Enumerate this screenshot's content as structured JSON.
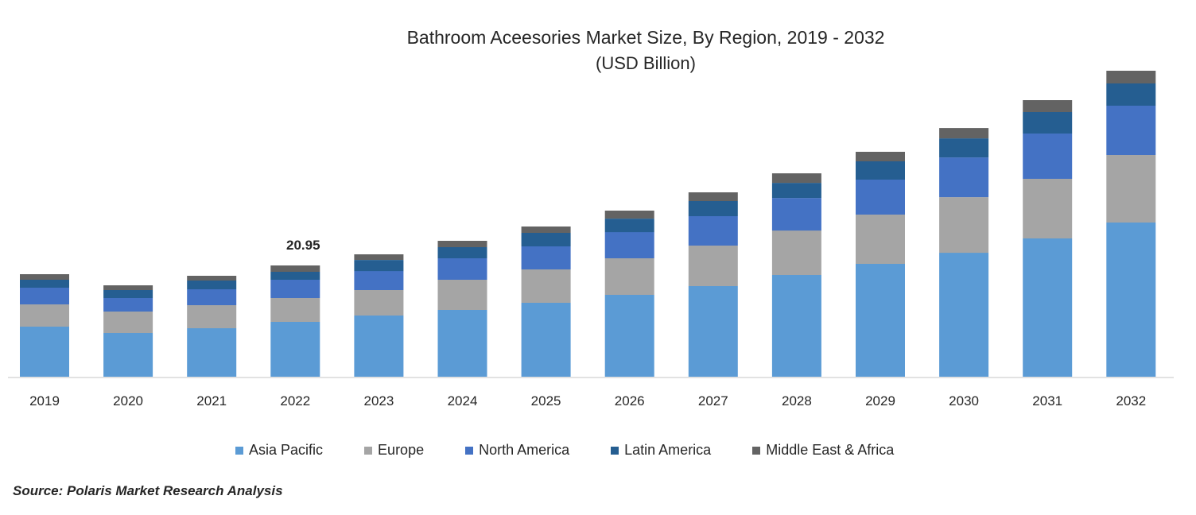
{
  "chart_data": {
    "type": "bar",
    "stacked": true,
    "title": "Bathroom Aceesories Market Size, By Region, 2019 - 2032",
    "subtitle": "(USD Billion)",
    "xlabel": "",
    "ylabel": "",
    "categories": [
      "2019",
      "2020",
      "2021",
      "2022",
      "2023",
      "2024",
      "2025",
      "2026",
      "2027",
      "2028",
      "2029",
      "2030",
      "2031",
      "2032"
    ],
    "series": [
      {
        "name": "Asia Pacific",
        "color": "#5b9bd5",
        "values": [
          9.43,
          8.23,
          9.13,
          10.32,
          11.52,
          12.57,
          13.92,
          15.41,
          17.06,
          19.15,
          21.25,
          23.34,
          26.04,
          29.03
        ]
      },
      {
        "name": "Europe",
        "color": "#a5a5a5",
        "values": [
          4.19,
          4.04,
          4.34,
          4.49,
          4.79,
          5.69,
          6.28,
          6.88,
          7.63,
          8.38,
          9.28,
          10.47,
          11.22,
          12.72
        ]
      },
      {
        "name": "North America",
        "color": "#4472c4",
        "values": [
          3.14,
          2.54,
          2.99,
          3.44,
          3.59,
          4.04,
          4.34,
          4.94,
          5.54,
          6.13,
          6.58,
          7.48,
          8.53,
          9.28
        ]
      },
      {
        "name": "Latin America",
        "color": "#255e91",
        "values": [
          1.5,
          1.5,
          1.65,
          1.5,
          2.09,
          2.09,
          2.54,
          2.54,
          2.84,
          2.84,
          3.44,
          3.59,
          4.04,
          4.19
        ]
      },
      {
        "name": "Middle East & Africa",
        "color": "#636363",
        "values": [
          1.05,
          0.9,
          0.9,
          1.2,
          1.05,
          1.2,
          1.2,
          1.5,
          1.65,
          1.8,
          1.8,
          1.95,
          2.24,
          2.39
        ]
      }
    ],
    "annotations": [
      {
        "category": "2022",
        "text": "20.95"
      }
    ],
    "ylim": [
      0,
      60
    ],
    "grid": false,
    "legend_position": "bottom",
    "source": "Source: Polaris  Market Research Analysis"
  }
}
